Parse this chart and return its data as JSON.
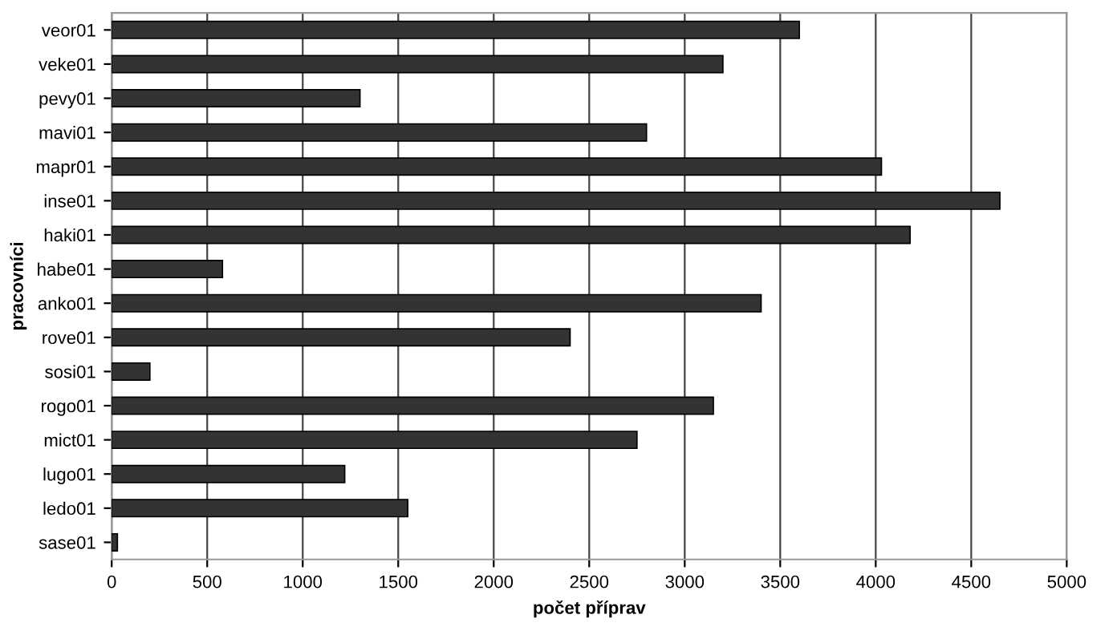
{
  "chart_data": {
    "type": "bar",
    "orientation": "horizontal",
    "categories": [
      "veor01",
      "veke01",
      "pevy01",
      "mavi01",
      "mapr01",
      "inse01",
      "haki01",
      "habe01",
      "anko01",
      "rove01",
      "sosi01",
      "rogo01",
      "mict01",
      "lugo01",
      "ledo01",
      "sase01"
    ],
    "values": [
      3600,
      3200,
      1300,
      2800,
      4030,
      4650,
      4180,
      580,
      3400,
      2400,
      200,
      3150,
      2750,
      1220,
      1550,
      30
    ],
    "color": "#333333",
    "xlabel": "počet příprav",
    "ylabel": "pracovníci",
    "xlim": [
      0,
      5000
    ],
    "xticks": [
      0,
      500,
      1000,
      1500,
      2000,
      2500,
      3000,
      3500,
      4000,
      4500,
      5000
    ],
    "grid": "x"
  }
}
